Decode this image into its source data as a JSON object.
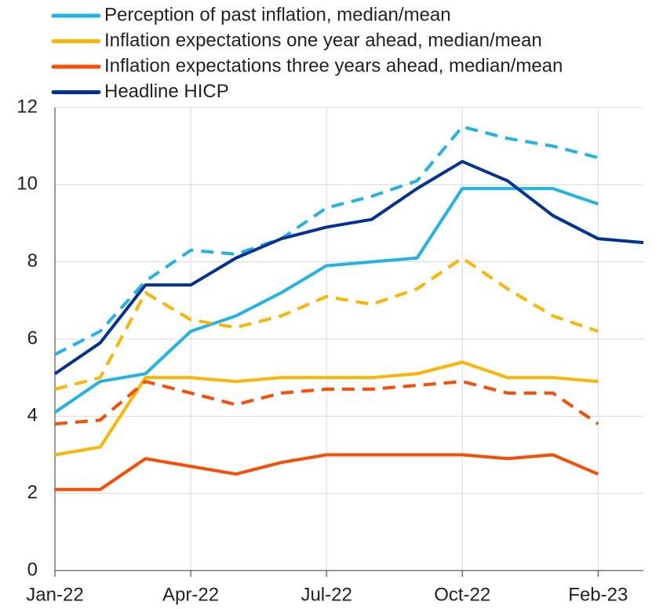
{
  "chart_data": {
    "type": "line",
    "categories": [
      "Jan-22",
      null,
      null,
      "Apr-22",
      null,
      null,
      "Jul-22",
      null,
      null,
      "Oct-22",
      null,
      null,
      "Feb-23",
      null
    ],
    "ylim": [
      0,
      12
    ],
    "yticks": [
      0,
      2,
      4,
      6,
      8,
      10,
      12
    ],
    "grid": true,
    "legend": "top-left",
    "series": [
      {
        "name": "Perception of past inflation, median/mean",
        "color": "#1eb4ea",
        "values": [
          4.1,
          4.9,
          5.1,
          6.2,
          6.6,
          7.2,
          7.9,
          8.0,
          8.1,
          9.9,
          9.9,
          9.9,
          9.5,
          null
        ],
        "mean_values": [
          5.6,
          6.2,
          7.5,
          8.3,
          8.2,
          8.6,
          9.4,
          9.7,
          10.1,
          11.5,
          11.2,
          11.0,
          10.7,
          null
        ]
      },
      {
        "name": "Inflation expectations one year ahead, median/mean",
        "color": "#ffb400",
        "values": [
          3.0,
          3.2,
          5.0,
          5.0,
          4.9,
          5.0,
          5.0,
          5.0,
          5.1,
          5.4,
          5.0,
          5.0,
          4.9,
          null
        ],
        "mean_values": [
          4.7,
          5.0,
          7.2,
          6.5,
          6.3,
          6.6,
          7.1,
          6.9,
          7.3,
          8.1,
          7.3,
          6.6,
          6.2,
          null
        ]
      },
      {
        "name": "Inflation expectations three years ahead, median/mean",
        "color": "#ff4b00",
        "values": [
          2.1,
          2.1,
          2.9,
          2.7,
          2.5,
          2.8,
          3.0,
          3.0,
          3.0,
          3.0,
          2.9,
          3.0,
          2.5,
          null
        ],
        "mean_values": [
          3.8,
          3.9,
          4.9,
          4.6,
          4.3,
          4.6,
          4.7,
          4.7,
          4.8,
          4.9,
          4.6,
          4.6,
          3.8,
          null
        ]
      },
      {
        "name": "Headline HICP",
        "color": "#003299",
        "values": [
          5.1,
          5.9,
          7.4,
          7.4,
          8.1,
          8.6,
          8.9,
          9.1,
          9.9,
          10.6,
          10.1,
          9.2,
          8.6,
          8.5
        ]
      }
    ]
  }
}
